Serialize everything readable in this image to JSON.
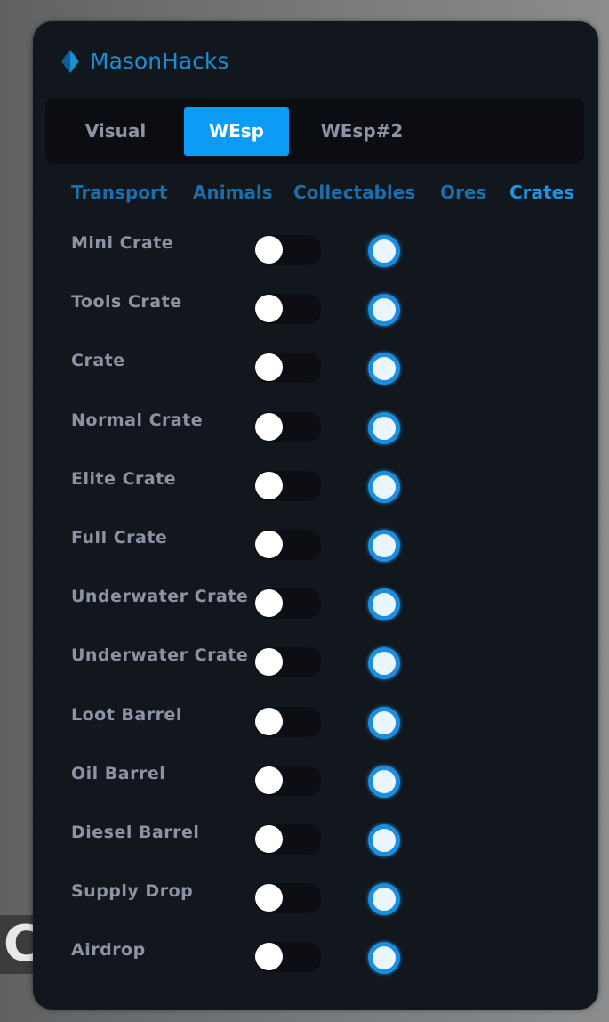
{
  "background_text": "CT",
  "app": {
    "title": "MasonHacks",
    "accent": "#0d9cf5"
  },
  "tabs": [
    {
      "label": "Visual"
    },
    {
      "label": "WEsp",
      "active": true
    },
    {
      "label": "WEsp#2"
    }
  ],
  "subtabs": [
    {
      "label": "Transport"
    },
    {
      "label": "Animals"
    },
    {
      "label": "Collectables"
    },
    {
      "label": "Ores"
    },
    {
      "label": "Crates",
      "active": true
    }
  ],
  "items": [
    {
      "label": "Mini Crate",
      "toggle": false,
      "radio": true
    },
    {
      "label": "Tools Crate",
      "toggle": false,
      "radio": true
    },
    {
      "label": "Crate",
      "toggle": false,
      "radio": true
    },
    {
      "label": "Normal Crate",
      "toggle": false,
      "radio": true
    },
    {
      "label": "Elite Crate",
      "toggle": false,
      "radio": true
    },
    {
      "label": "Full Crate",
      "toggle": false,
      "radio": true
    },
    {
      "label": "Underwater Crate",
      "toggle": false,
      "radio": true
    },
    {
      "label": "Underwater Crate",
      "toggle": false,
      "radio": true
    },
    {
      "label": "Loot Barrel",
      "toggle": false,
      "radio": true
    },
    {
      "label": "Oil Barrel",
      "toggle": false,
      "radio": true
    },
    {
      "label": "Diesel Barrel",
      "toggle": false,
      "radio": true
    },
    {
      "label": "Supply Drop",
      "toggle": false,
      "radio": true
    },
    {
      "label": "Airdrop",
      "toggle": false,
      "radio": true
    }
  ]
}
